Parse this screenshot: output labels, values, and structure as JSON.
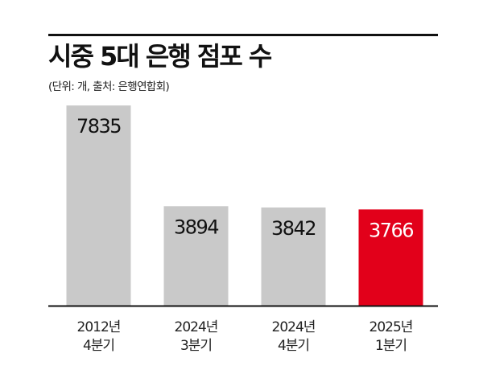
{
  "header": {
    "title": "시중 5대 은행 점포 수",
    "subtitle": "(단위: 개, 출처: 은행연합회)"
  },
  "colors": {
    "default_bar": "#c9c9c9",
    "highlight_bar": "#e2001a",
    "default_label": "#111111",
    "highlight_label": "#ffffff",
    "rule": "#111111"
  },
  "chart_data": {
    "type": "bar",
    "categories": [
      [
        "2012년",
        "4분기"
      ],
      [
        "2024년",
        "3분기"
      ],
      [
        "2024년",
        "4분기"
      ],
      [
        "2025년",
        "1분기"
      ]
    ],
    "values": [
      7835,
      3894,
      3842,
      3766
    ],
    "value_labels": [
      "7835",
      "3894",
      "3842",
      "3766"
    ],
    "highlight_index": 3,
    "ylim": [
      0,
      8500
    ],
    "grid": false,
    "legend": "none"
  }
}
